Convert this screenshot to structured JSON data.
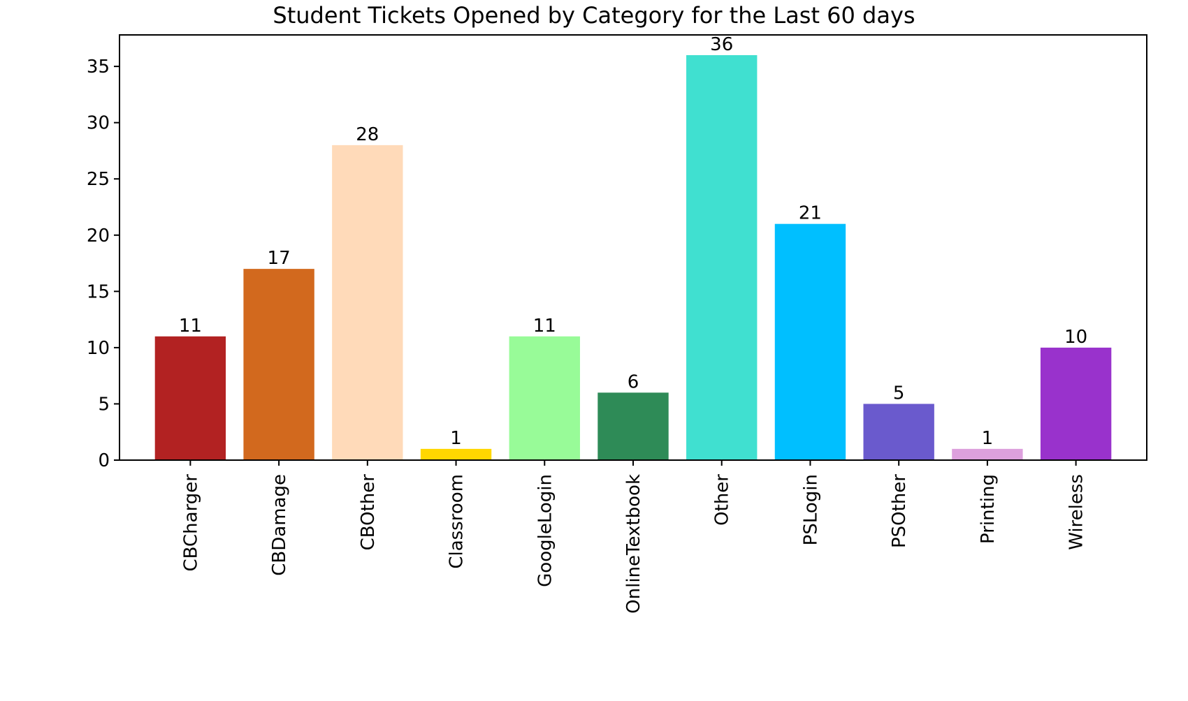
{
  "chart_data": {
    "type": "bar",
    "title": "Student Tickets Opened by Category for the Last 60 days",
    "xlabel": "",
    "ylabel": "",
    "categories": [
      "CBCharger",
      "CBDamage",
      "CBOther",
      "Classroom",
      "GoogleLogin",
      "OnlineTextbook",
      "Other",
      "PSLogin",
      "PSOther",
      "Printing",
      "Wireless"
    ],
    "values": [
      11,
      17,
      28,
      1,
      11,
      6,
      36,
      21,
      5,
      1,
      10
    ],
    "colors": [
      "#b22222",
      "#d2691e",
      "#ffdab9",
      "#ffd700",
      "#98fb98",
      "#2e8b57",
      "#40e0d0",
      "#00bfff",
      "#6a5acd",
      "#dda0dd",
      "#9932cc"
    ],
    "data_labels": [
      "11",
      "17",
      "28",
      "1",
      "11",
      "6",
      "36",
      "21",
      "5",
      "1",
      "10"
    ],
    "yticks": [
      0,
      5,
      10,
      15,
      20,
      25,
      30,
      35
    ],
    "ytick_labels": [
      "0",
      "5",
      "10",
      "15",
      "20",
      "25",
      "30",
      "35"
    ],
    "ylim": [
      0,
      37.8
    ],
    "grid": false,
    "legend": "none"
  }
}
